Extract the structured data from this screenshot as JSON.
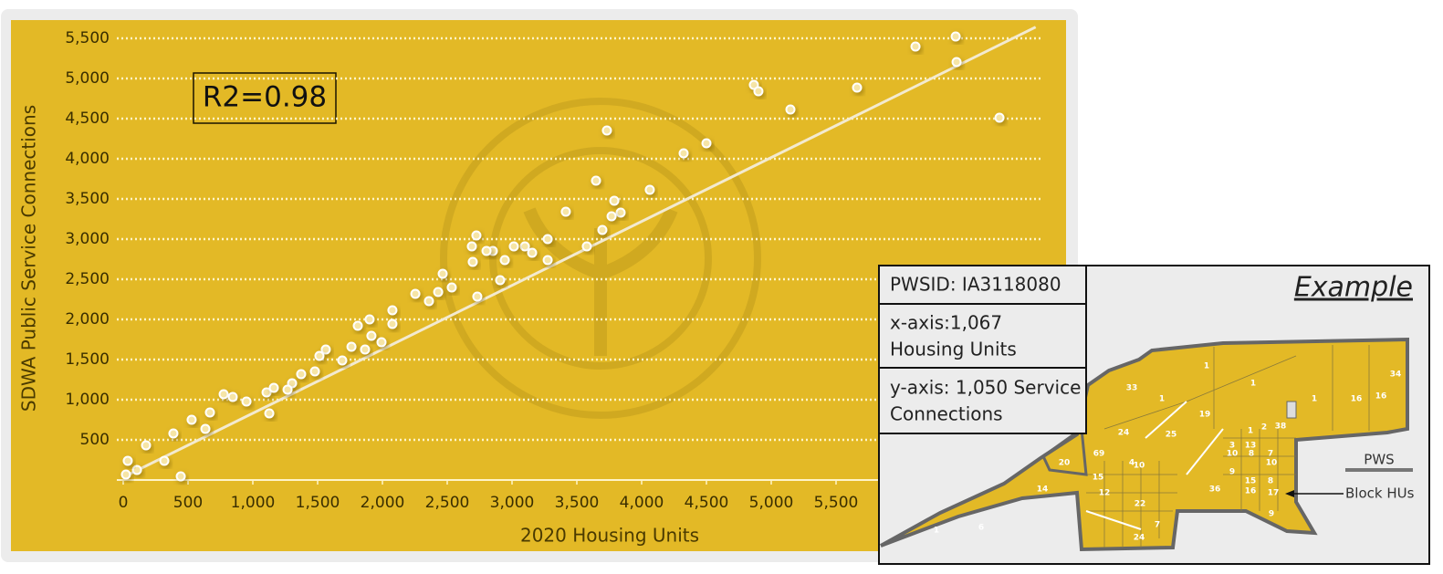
{
  "chart_data": {
    "type": "scatter",
    "x_label": "2020 Housing Units",
    "y_label": "SDWA Public Service Connections",
    "annotation": "R2=0.98",
    "xlim": [
      0,
      7250
    ],
    "ylim": [
      0,
      5700
    ],
    "xticks": [
      0,
      500,
      {
        "value": 1000,
        "label": "1,000"
      },
      {
        "value": 1500,
        "label": "1,500"
      },
      {
        "value": 2000,
        "label": "2,000"
      },
      {
        "value": 2500,
        "label": "2,500"
      },
      {
        "value": 3000,
        "label": "3,000"
      },
      {
        "value": 3500,
        "label": "3,500"
      },
      {
        "value": 4000,
        "label": "4,000"
      },
      {
        "value": 4500,
        "label": "4,500"
      },
      {
        "value": 5000,
        "label": "5,000"
      },
      {
        "value": 5500,
        "label": "5,500"
      }
    ],
    "yticks": [
      500,
      {
        "value": 1000,
        "label": "1,000"
      },
      {
        "value": 1500,
        "label": "1,500"
      },
      {
        "value": 2000,
        "label": "2,000"
      },
      {
        "value": 2500,
        "label": "2,500"
      },
      {
        "value": 3000,
        "label": "3,000"
      },
      {
        "value": 3500,
        "label": "3,500"
      },
      {
        "value": 4000,
        "label": "4,000"
      },
      {
        "value": 4500,
        "label": "4,500"
      },
      {
        "value": 5000,
        "label": "5,000"
      },
      {
        "value": 5500,
        "label": "5,500"
      }
    ],
    "grid": true,
    "color": "#f6e5a6",
    "x": [
      6423,
      6113,
      6430,
      6761,
      4866,
      4901,
      5662,
      5148,
      4500,
      4324,
      3732,
      4063,
      3648,
      3415,
      3789,
      3838,
      3768,
      3697,
      3577,
      3275,
      3275,
      3099,
      3155,
      3014,
      2944,
      2908,
      2852,
      2803,
      2725,
      2690,
      2697,
      2732,
      2535,
      2465,
      2430,
      2359,
      2254,
      2077,
      1901,
      2077,
      1810,
      1915,
      1866,
      1993,
      1761,
      1563,
      1514,
      1479,
      1373,
      1303,
      1127,
      1106,
      1162,
      951,
      775,
      845,
      669,
      528,
      444,
      176,
      317,
      387,
      106,
      35,
      21,
      634,
      1268,
      1690
    ],
    "values": [
      5523,
      5398,
      5205,
      4511,
      4920,
      4841,
      4886,
      4614,
      4193,
      4068,
      4352,
      3614,
      3727,
      3341,
      3477,
      3330,
      3284,
      3114,
      2909,
      3000,
      2739,
      2909,
      2830,
      2909,
      2739,
      2489,
      2852,
      2852,
      3045,
      2909,
      2716,
      2284,
      2398,
      2568,
      2341,
      2227,
      2318,
      2114,
      2000,
      1943,
      1920,
      1795,
      1625,
      1716,
      1659,
      1625,
      1545,
      1352,
      1318,
      1205,
      830,
      1091,
      1148,
      977,
      1068,
      1034,
      841,
      750,
      45,
      432,
      239,
      580,
      125,
      239,
      68,
      636,
      1125,
      1489
    ],
    "trendline": {
      "x": [
        0,
        7040
      ],
      "values": [
        35,
        5640
      ]
    }
  },
  "inset": {
    "title": "Example",
    "pwsid": "PWSID: IA3118080",
    "x_note": [
      "x-axis:1,067",
      "Housing Units"
    ],
    "y_note": [
      "y-axis: 1,050 Service",
      "Connections"
    ],
    "legend_pws": "PWS",
    "legend_block": "Block HUs",
    "map_labels": [
      "33",
      "1",
      "1",
      "1",
      "1",
      "16",
      "16",
      "34",
      "19",
      "25",
      "24",
      "69",
      "20",
      "14",
      "6",
      "1",
      "24",
      "7",
      "36",
      "38",
      "2",
      "1",
      "13",
      "9",
      "17",
      "8",
      "10",
      "7",
      "9",
      "10",
      "3",
      "15",
      "12",
      "22",
      "4",
      "10",
      "8",
      "16",
      "15"
    ]
  }
}
